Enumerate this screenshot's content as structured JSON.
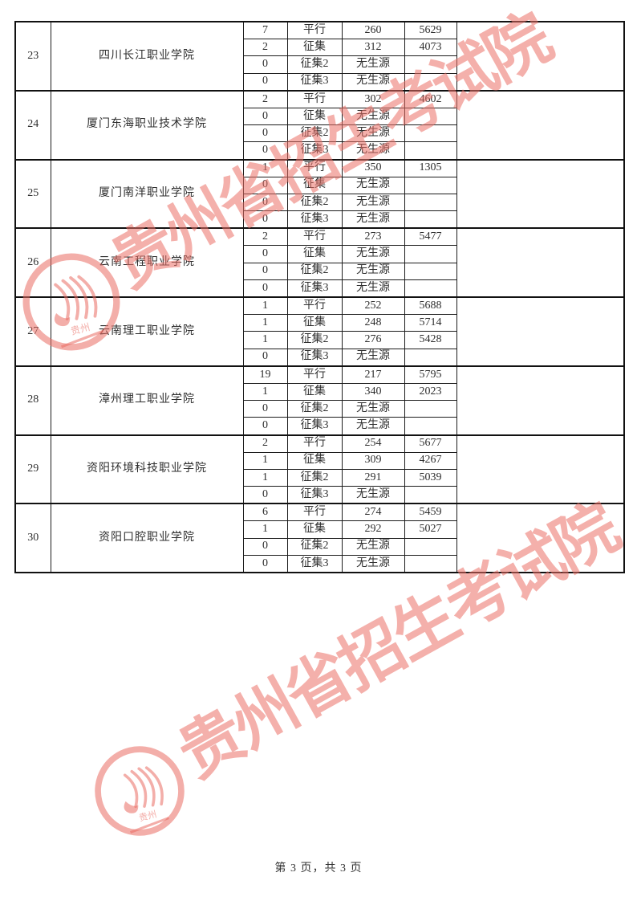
{
  "page": {
    "footer": "第 3 页，共 3 页"
  },
  "watermark": {
    "text": "贵州省招生考试院",
    "seal_text": "贵州",
    "color": "#eb7066"
  },
  "table": {
    "groups": [
      {
        "seq": "23",
        "college": "四川长江职业学院",
        "rows": [
          {
            "count": "7",
            "round": "平行",
            "score": "260",
            "rank": "5629"
          },
          {
            "count": "2",
            "round": "征集",
            "score": "312",
            "rank": "4073"
          },
          {
            "count": "0",
            "round": "征集2",
            "score": "无生源",
            "rank": ""
          },
          {
            "count": "0",
            "round": "征集3",
            "score": "无生源",
            "rank": ""
          }
        ]
      },
      {
        "seq": "24",
        "college": "厦门东海职业技术学院",
        "rows": [
          {
            "count": "2",
            "round": "平行",
            "score": "302",
            "rank": "4602"
          },
          {
            "count": "0",
            "round": "征集",
            "score": "无生源",
            "rank": ""
          },
          {
            "count": "0",
            "round": "征集2",
            "score": "无生源",
            "rank": ""
          },
          {
            "count": "0",
            "round": "征集3",
            "score": "无生源",
            "rank": ""
          }
        ]
      },
      {
        "seq": "25",
        "college": "厦门南洋职业学院",
        "rows": [
          {
            "count": "1",
            "round": "平行",
            "score": "350",
            "rank": "1305"
          },
          {
            "count": "0",
            "round": "征集",
            "score": "无生源",
            "rank": ""
          },
          {
            "count": "0",
            "round": "征集2",
            "score": "无生源",
            "rank": ""
          },
          {
            "count": "0",
            "round": "征集3",
            "score": "无生源",
            "rank": ""
          }
        ]
      },
      {
        "seq": "26",
        "college": "云南工程职业学院",
        "rows": [
          {
            "count": "2",
            "round": "平行",
            "score": "273",
            "rank": "5477"
          },
          {
            "count": "0",
            "round": "征集",
            "score": "无生源",
            "rank": ""
          },
          {
            "count": "0",
            "round": "征集2",
            "score": "无生源",
            "rank": ""
          },
          {
            "count": "0",
            "round": "征集3",
            "score": "无生源",
            "rank": ""
          }
        ]
      },
      {
        "seq": "27",
        "college": "云南理工职业学院",
        "rows": [
          {
            "count": "1",
            "round": "平行",
            "score": "252",
            "rank": "5688"
          },
          {
            "count": "1",
            "round": "征集",
            "score": "248",
            "rank": "5714"
          },
          {
            "count": "1",
            "round": "征集2",
            "score": "276",
            "rank": "5428"
          },
          {
            "count": "0",
            "round": "征集3",
            "score": "无生源",
            "rank": ""
          }
        ]
      },
      {
        "seq": "28",
        "college": "漳州理工职业学院",
        "rows": [
          {
            "count": "19",
            "round": "平行",
            "score": "217",
            "rank": "5795"
          },
          {
            "count": "1",
            "round": "征集",
            "score": "340",
            "rank": "2023"
          },
          {
            "count": "0",
            "round": "征集2",
            "score": "无生源",
            "rank": ""
          },
          {
            "count": "0",
            "round": "征集3",
            "score": "无生源",
            "rank": ""
          }
        ]
      },
      {
        "seq": "29",
        "college": "资阳环境科技职业学院",
        "rows": [
          {
            "count": "2",
            "round": "平行",
            "score": "254",
            "rank": "5677"
          },
          {
            "count": "1",
            "round": "征集",
            "score": "309",
            "rank": "4267"
          },
          {
            "count": "1",
            "round": "征集2",
            "score": "291",
            "rank": "5039"
          },
          {
            "count": "0",
            "round": "征集3",
            "score": "无生源",
            "rank": ""
          }
        ]
      },
      {
        "seq": "30",
        "college": "资阳口腔职业学院",
        "rows": [
          {
            "count": "6",
            "round": "平行",
            "score": "274",
            "rank": "5459"
          },
          {
            "count": "1",
            "round": "征集",
            "score": "292",
            "rank": "5027"
          },
          {
            "count": "0",
            "round": "征集2",
            "score": "无生源",
            "rank": ""
          },
          {
            "count": "0",
            "round": "征集3",
            "score": "无生源",
            "rank": ""
          }
        ]
      }
    ]
  }
}
